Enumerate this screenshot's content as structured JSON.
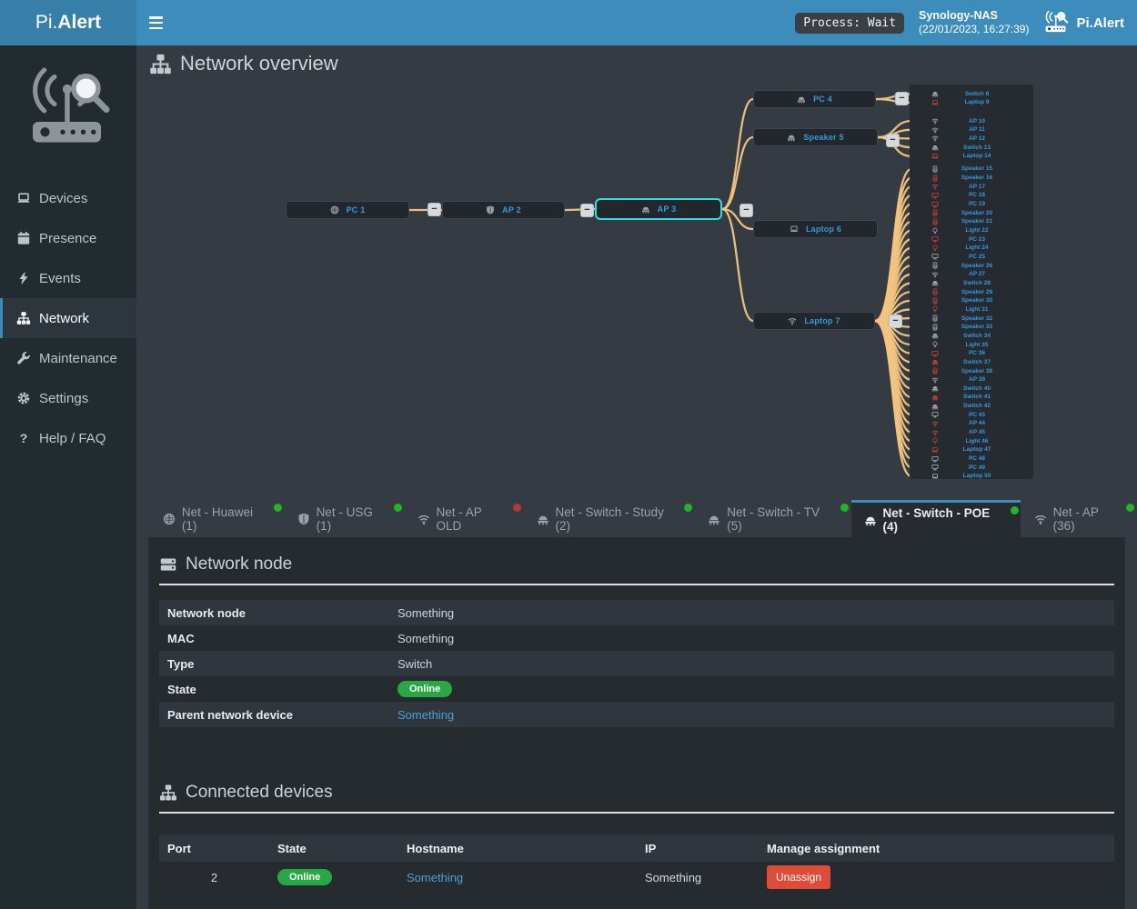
{
  "header": {
    "brand_pi": "Pi.",
    "brand_alert": "Alert",
    "process_label": "Process: Wait",
    "host_name": "Synology-NAS",
    "host_time": "(22/01/2023, 16:27:39)",
    "app_name": "Pi.Alert"
  },
  "sidebar": {
    "items": [
      {
        "label": "Devices",
        "icon": "laptop",
        "active": false
      },
      {
        "label": "Presence",
        "icon": "calendar",
        "active": false
      },
      {
        "label": "Events",
        "icon": "bolt",
        "active": false
      },
      {
        "label": "Network",
        "icon": "sitemap",
        "active": true
      },
      {
        "label": "Maintenance",
        "icon": "wrench",
        "active": false
      },
      {
        "label": "Settings",
        "icon": "gear",
        "active": false
      },
      {
        "label": "Help / FAQ",
        "icon": "question",
        "active": false
      }
    ]
  },
  "page": {
    "title": "Network overview"
  },
  "diagram": {
    "nodes": [
      {
        "id": "pc1",
        "label": "PC 1",
        "icon": "globe",
        "selected": false
      },
      {
        "id": "ap2",
        "label": "AP 2",
        "icon": "shield",
        "selected": false
      },
      {
        "id": "ap3",
        "label": "AP 3",
        "icon": "switch",
        "selected": true
      },
      {
        "id": "pc4",
        "label": "PC 4",
        "icon": "switch",
        "selected": false
      },
      {
        "id": "sp5",
        "label": "Speaker 5",
        "icon": "switch",
        "selected": false
      },
      {
        "id": "lt6",
        "label": "Laptop 6",
        "icon": "laptop",
        "selected": false
      },
      {
        "id": "lt7",
        "label": "Laptop 7",
        "icon": "wifi",
        "selected": false
      }
    ],
    "links": [
      [
        "pc1",
        "ap2"
      ],
      [
        "ap2",
        "ap3"
      ],
      [
        "ap3",
        "pc4"
      ],
      [
        "ap3",
        "sp5"
      ],
      [
        "ap3",
        "lt6"
      ],
      [
        "ap3",
        "lt7"
      ]
    ],
    "groups": [
      {
        "parent": "pc4",
        "items": [
          {
            "label": "Switch 8",
            "icon": "switch",
            "status": "ok"
          },
          {
            "label": "Laptop 9",
            "icon": "laptop",
            "status": "alert"
          }
        ]
      },
      {
        "parent": "sp5",
        "items": [
          {
            "label": "AP 10",
            "icon": "wifi",
            "status": "ok"
          },
          {
            "label": "AP 11",
            "icon": "wifi",
            "status": "ok"
          },
          {
            "label": "AP 12",
            "icon": "wifi",
            "status": "ok"
          },
          {
            "label": "Switch 13",
            "icon": "switch",
            "status": "ok"
          },
          {
            "label": "Laptop 14",
            "icon": "laptop",
            "status": "alert"
          }
        ]
      },
      {
        "parent": "lt7",
        "items": [
          {
            "label": "Speaker 15",
            "icon": "speaker",
            "status": "ok"
          },
          {
            "label": "Speaker 16",
            "icon": "speaker",
            "status": "alert"
          },
          {
            "label": "AP 17",
            "icon": "wifi",
            "status": "alert"
          },
          {
            "label": "PC 18",
            "icon": "desktop",
            "status": "alert"
          },
          {
            "label": "PC 19",
            "icon": "desktop",
            "status": "alert"
          },
          {
            "label": "Speaker 20",
            "icon": "speaker",
            "status": "alert"
          },
          {
            "label": "Speaker 21",
            "icon": "speaker",
            "status": "alert"
          },
          {
            "label": "Light 22",
            "icon": "bulb",
            "status": "ok"
          },
          {
            "label": "PC 23",
            "icon": "desktop",
            "status": "alert"
          },
          {
            "label": "Light 24",
            "icon": "bulb",
            "status": "alert"
          },
          {
            "label": "PC 25",
            "icon": "desktop",
            "status": "ok"
          },
          {
            "label": "Speaker 26",
            "icon": "speaker",
            "status": "ok"
          },
          {
            "label": "AP 27",
            "icon": "wifi",
            "status": "ok"
          },
          {
            "label": "Switch 28",
            "icon": "switch",
            "status": "ok"
          },
          {
            "label": "Speaker 29",
            "icon": "speaker",
            "status": "alert"
          },
          {
            "label": "Speaker 30",
            "icon": "speaker",
            "status": "alert"
          },
          {
            "label": "Light 31",
            "icon": "bulb",
            "status": "alert"
          },
          {
            "label": "Speaker 32",
            "icon": "speaker",
            "status": "ok"
          },
          {
            "label": "Speaker 33",
            "icon": "speaker",
            "status": "ok"
          },
          {
            "label": "Switch 34",
            "icon": "switch",
            "status": "ok"
          },
          {
            "label": "Light 35",
            "icon": "bulb",
            "status": "ok"
          },
          {
            "label": "PC 36",
            "icon": "desktop",
            "status": "alert"
          },
          {
            "label": "Switch 37",
            "icon": "switch",
            "status": "alert"
          },
          {
            "label": "Speaker 38",
            "icon": "speaker",
            "status": "alert"
          },
          {
            "label": "AP 39",
            "icon": "wifi",
            "status": "ok"
          },
          {
            "label": "Switch 40",
            "icon": "switch",
            "status": "ok"
          },
          {
            "label": "Switch 41",
            "icon": "switch",
            "status": "alert"
          },
          {
            "label": "Switch 42",
            "icon": "switch",
            "status": "ok"
          },
          {
            "label": "PC 43",
            "icon": "desktop",
            "status": "ok"
          },
          {
            "label": "AP 44",
            "icon": "wifi",
            "status": "alert"
          },
          {
            "label": "AP 45",
            "icon": "wifi",
            "status": "alert"
          },
          {
            "label": "Light 46",
            "icon": "bulb",
            "status": "alert"
          },
          {
            "label": "Laptop 47",
            "icon": "laptop",
            "status": "alert"
          },
          {
            "label": "PC 48",
            "icon": "desktop",
            "status": "ok"
          },
          {
            "label": "PC 49",
            "icon": "desktop",
            "status": "ok"
          },
          {
            "label": "Laptop 50",
            "icon": "laptop",
            "status": "ok"
          }
        ]
      }
    ]
  },
  "tabs": [
    {
      "label": "Net - Huawei (1)",
      "icon": "globe",
      "dot": "green",
      "active": false
    },
    {
      "label": "Net - USG (1)",
      "icon": "shield",
      "dot": "green",
      "active": false
    },
    {
      "label": "Net - AP OLD",
      "icon": "wifi",
      "dot": "red",
      "active": false
    },
    {
      "label": "Net - Switch - Study (2)",
      "icon": "switch",
      "dot": "green",
      "active": false
    },
    {
      "label": "Net - Switch - TV (5)",
      "icon": "switch",
      "dot": "green",
      "active": false
    },
    {
      "label": "Net - Switch - POE (4)",
      "icon": "switch",
      "dot": "green",
      "active": true
    },
    {
      "label": "Net - AP (36)",
      "icon": "wifi",
      "dot": "green",
      "active": false
    }
  ],
  "network_node": {
    "title": "Network node",
    "rows": [
      {
        "label": "Network node",
        "value": "Something",
        "kind": "text"
      },
      {
        "label": "MAC",
        "value": "Something",
        "kind": "text"
      },
      {
        "label": "Type",
        "value": "Switch",
        "kind": "text"
      },
      {
        "label": "State",
        "value": "Online",
        "kind": "badge"
      },
      {
        "label": "Parent network device",
        "value": "Something",
        "kind": "link"
      }
    ]
  },
  "connected_devices": {
    "title": "Connected devices",
    "columns": [
      "Port",
      "State",
      "Hostname",
      "IP",
      "Manage assignment"
    ],
    "rows": [
      {
        "port": "2",
        "state": "Online",
        "hostname": "Something",
        "ip": "Something",
        "action": "Unassign"
      }
    ]
  },
  "colors": {
    "header": "#3c8dbc",
    "link": "#4b9fd8",
    "line": "#f3c47e",
    "selected_border": "#29e0e2",
    "online": "#28a745",
    "danger": "#dd4b39",
    "dot_green": "#1fb723",
    "dot_red": "#b23a30"
  }
}
